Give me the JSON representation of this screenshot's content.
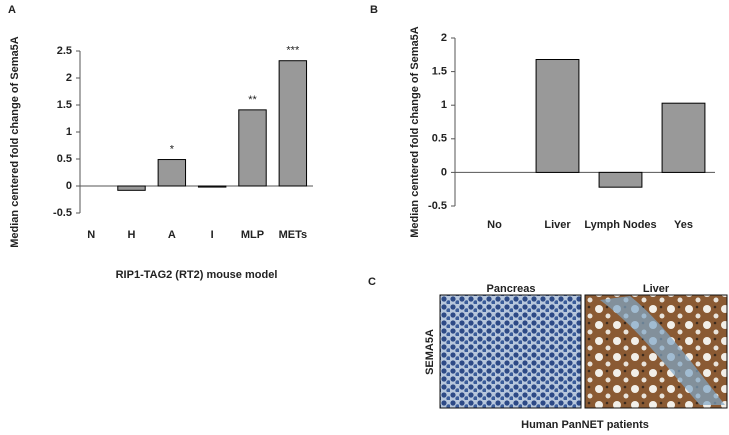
{
  "chart_data": [
    {
      "type": "bar",
      "categories": [
        "N",
        "H",
        "A",
        "I",
        "MLP",
        "METs"
      ],
      "values": [
        0,
        -0.08,
        0.49,
        -0.02,
        1.41,
        2.32
      ],
      "annotations": [
        null,
        null,
        "*",
        null,
        "**",
        "***"
      ],
      "color": "#999999",
      "ylim": [
        -0.5,
        2.5
      ],
      "yticks": [
        -0.5,
        0,
        0.5,
        1,
        1.5,
        2,
        2.5
      ],
      "ylabel": "Median centered fold change of Sema5A",
      "xlabel": "RIP1-TAG2 (RT2) mouse model"
    },
    {
      "type": "bar",
      "categories": [
        "No",
        "Liver",
        "Lymph Nodes",
        "Yes"
      ],
      "values": [
        0,
        1.68,
        -0.22,
        1.03
      ],
      "color": "#999999",
      "ylim": [
        -0.5,
        2
      ],
      "yticks": [
        -0.5,
        0,
        0.5,
        1,
        1.5,
        2
      ],
      "ylabel": "Median centered fold change of Sema5A"
    }
  ],
  "panel_labels": [
    "A",
    "B",
    "C"
  ],
  "panel_c": {
    "columns": [
      "Pancreas",
      "Liver"
    ],
    "row_label": "SEMA5A",
    "caption": "Human PanNET patients"
  }
}
